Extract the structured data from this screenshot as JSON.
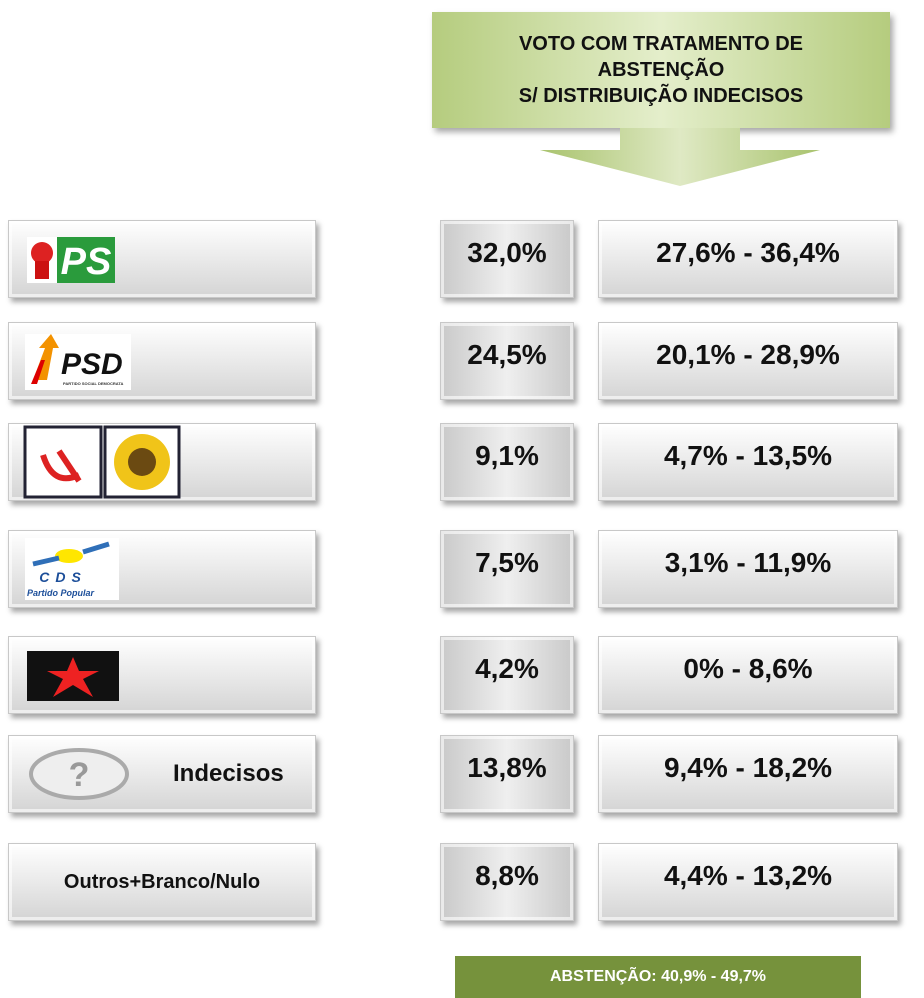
{
  "header": {
    "title_lines": [
      "VOTO  COM TRATAMENTO DE",
      "ABSTENÇÃO",
      "S/ DISTRIBUIÇÃO INDECISOS"
    ]
  },
  "rows": [
    {
      "logo_text": [
        "PS"
      ],
      "value": "32,0%",
      "range": "27,6% - 36,4%"
    },
    {
      "logo_text": [
        "PSD",
        "PARTIDO SOCIAL DEMOCRATA"
      ],
      "value": "24,5%",
      "range": "20,1% - 28,9%"
    },
    {
      "value": "9,1%",
      "range": "4,7% - 13,5%"
    },
    {
      "logo_text": [
        "CDS",
        "Partido Popular"
      ],
      "value": "7,5%",
      "range": "3,1% - 11,9%"
    },
    {
      "value": "4,2%",
      "range": "0% - 8,6%"
    },
    {
      "logo_text": [
        "?"
      ],
      "label": "Indecisos",
      "value": "13,8%",
      "range": "9,4% - 18,2%"
    },
    {
      "label": "Outros+Branco/Nulo",
      "value": "8,8%",
      "range": "4,4% - 13,2%"
    }
  ],
  "footer": {
    "text": "ABSTENÇÃO: 40,9% - 49,7%"
  }
}
